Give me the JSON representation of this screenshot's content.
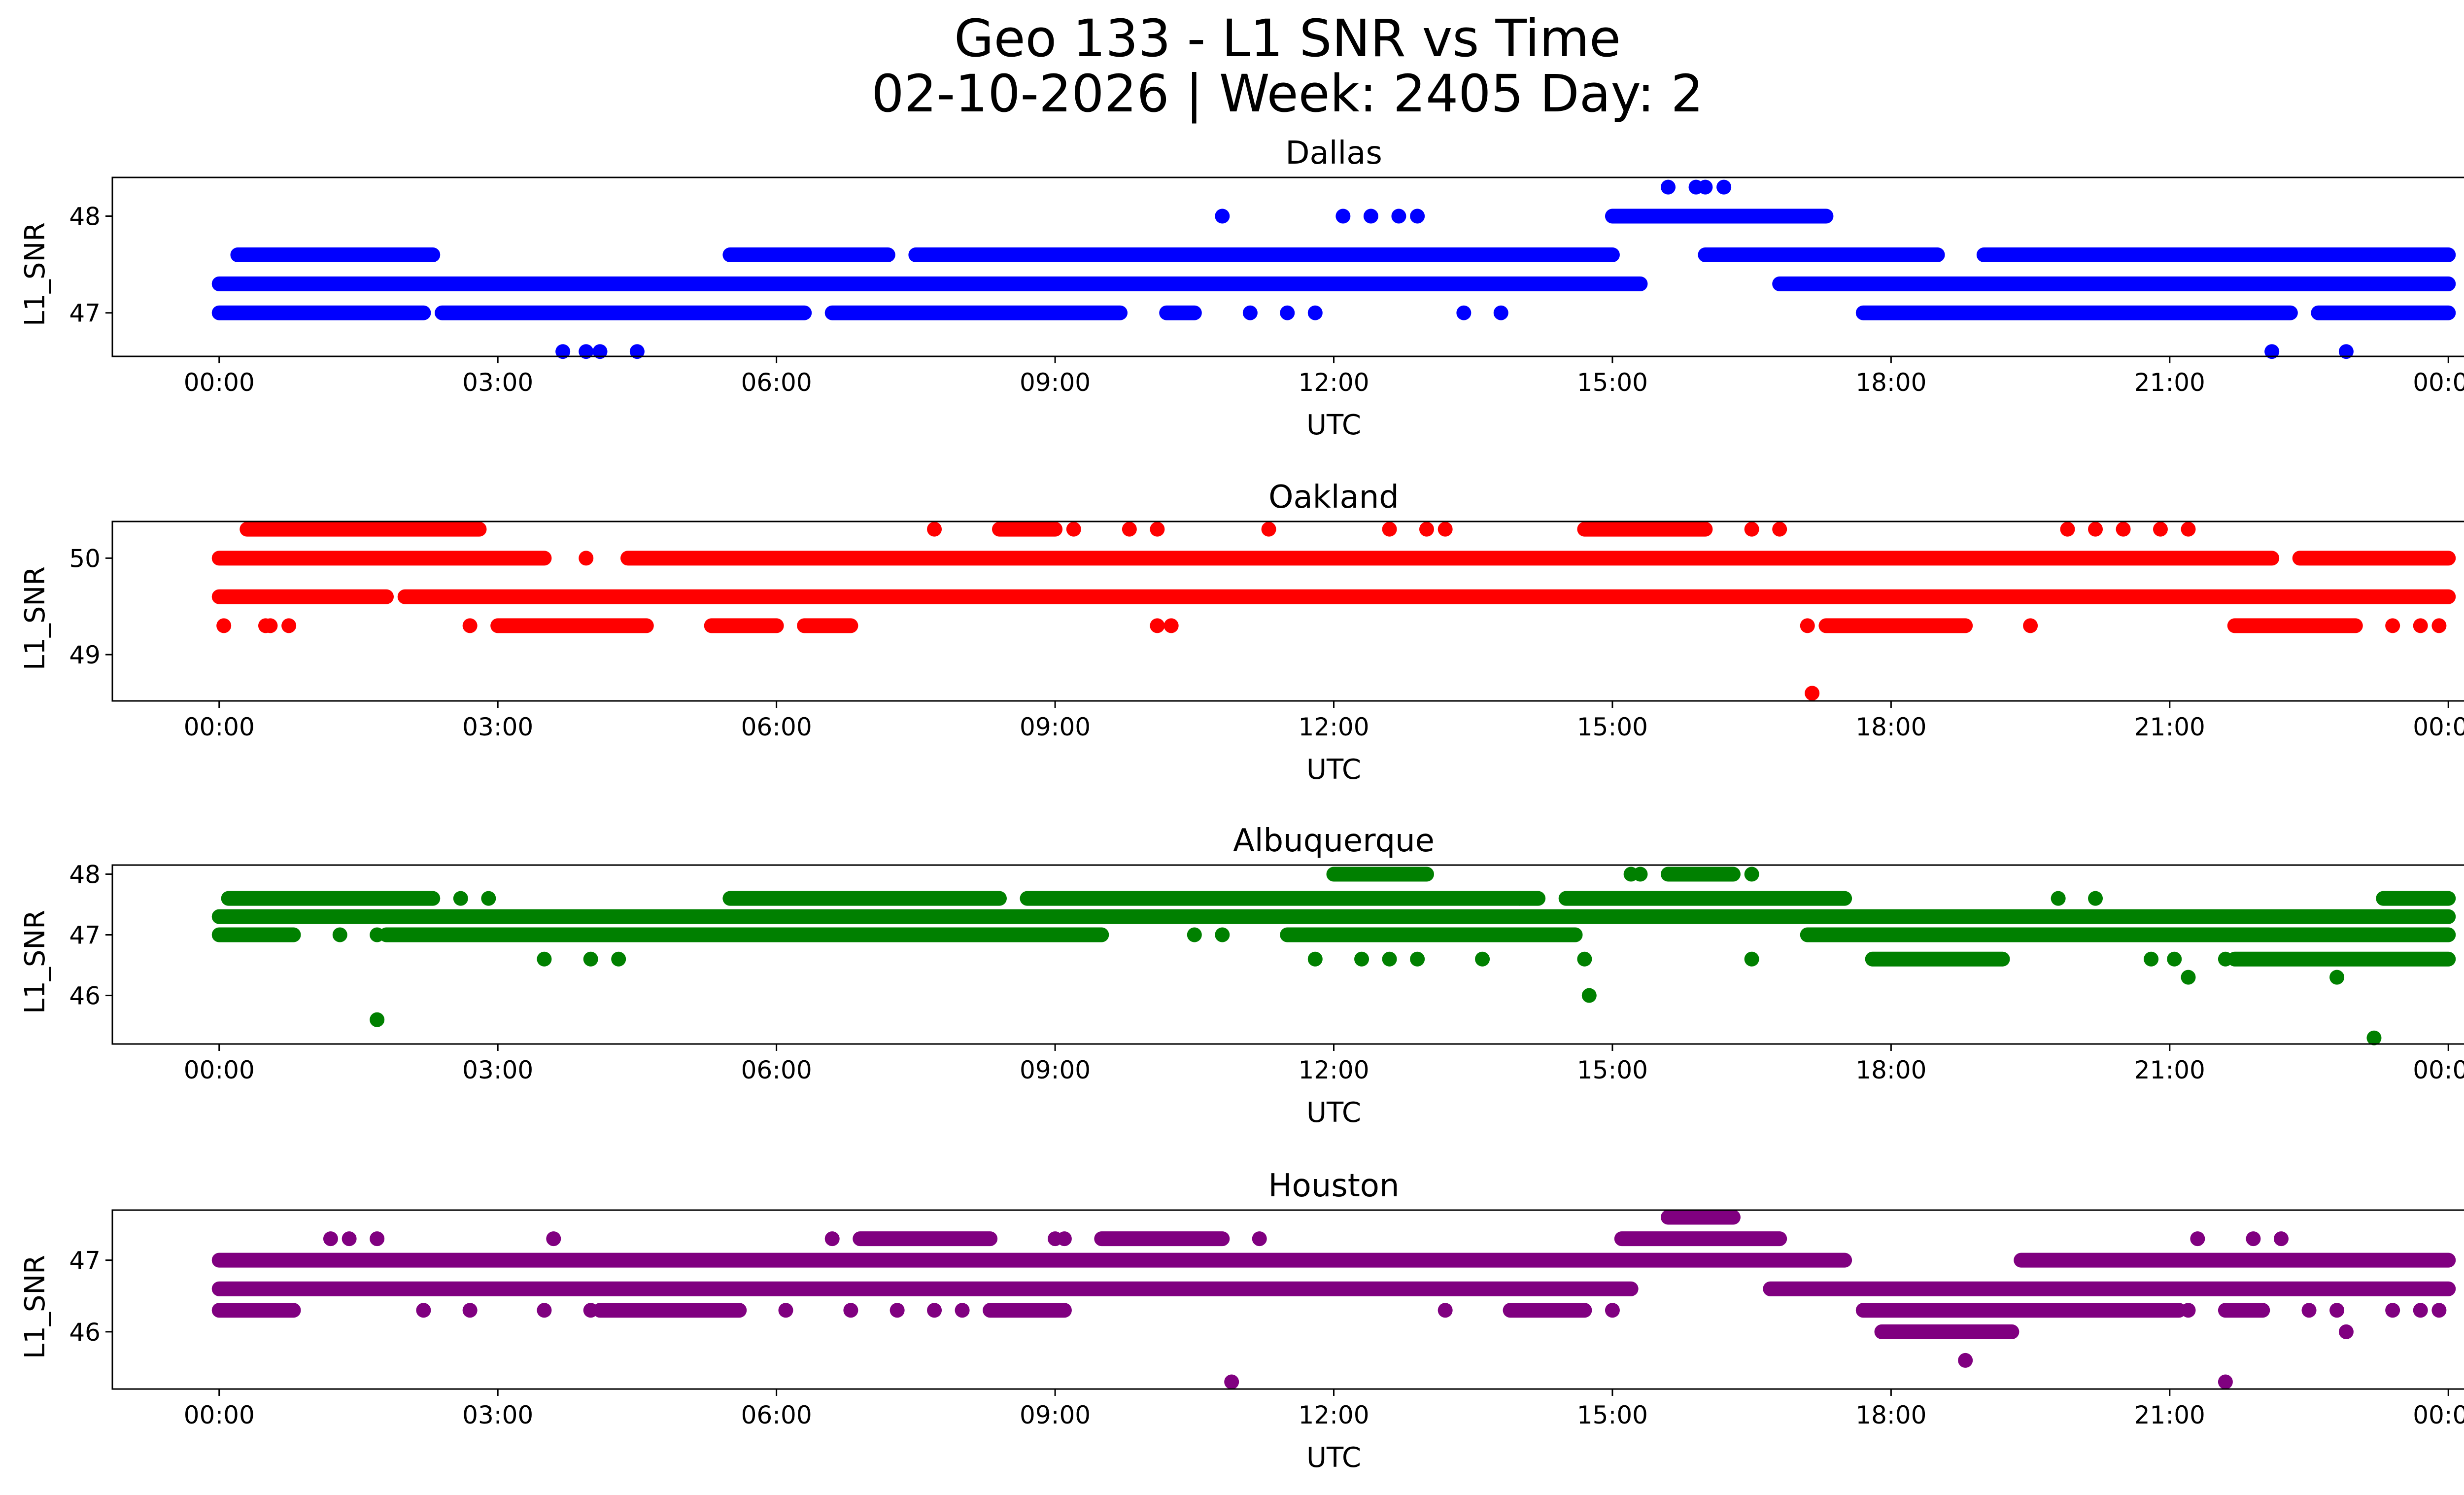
{
  "title": {
    "line1": "Geo 133 - L1 SNR vs Time",
    "line2": "02-10-2026 | Week: 2405 Day: 2"
  },
  "chart_data": [
    {
      "type": "scatter",
      "title": "Dallas",
      "color": "#0000ff",
      "xlabel": "UTC",
      "ylabel": "L1_SNR",
      "xlim_hours": [
        -1.15,
        25.15
      ],
      "ylim": [
        46.55,
        48.4
      ],
      "yticks": [
        47,
        48
      ],
      "xtick_labels": [
        "00:00",
        "03:00",
        "06:00",
        "09:00",
        "12:00",
        "15:00",
        "18:00",
        "21:00",
        "00:00"
      ],
      "bands": [
        {
          "y": 47.3,
          "segments": [
            [
              0.0,
              15.3
            ],
            [
              16.8,
              24.0
            ]
          ]
        },
        {
          "y": 47.0,
          "segments": [
            [
              0.0,
              2.2
            ],
            [
              2.4,
              6.3
            ],
            [
              6.6,
              9.7
            ],
            [
              10.2,
              10.5
            ],
            [
              17.7,
              22.3
            ],
            [
              22.6,
              24.0
            ]
          ]
        },
        {
          "y": 47.6,
          "segments": [
            [
              0.2,
              2.3
            ],
            [
              5.5,
              7.2
            ],
            [
              7.5,
              9.8
            ],
            [
              9.2,
              15.0
            ],
            [
              16.0,
              18.5
            ],
            [
              19.0,
              24.0
            ]
          ]
        },
        {
          "y": 48.0,
          "segments": [
            [
              15.0,
              17.3
            ]
          ]
        }
      ],
      "points": [
        [
          3.7,
          46.6
        ],
        [
          3.95,
          46.6
        ],
        [
          4.1,
          46.6
        ],
        [
          4.5,
          46.6
        ],
        [
          10.8,
          48.0
        ],
        [
          12.1,
          48.0
        ],
        [
          12.4,
          48.0
        ],
        [
          12.7,
          48.0
        ],
        [
          12.9,
          48.0
        ],
        [
          15.6,
          48.3
        ],
        [
          15.9,
          48.3
        ],
        [
          16.0,
          48.3
        ],
        [
          16.2,
          48.3
        ],
        [
          13.4,
          47.0
        ],
        [
          13.8,
          47.0
        ],
        [
          11.1,
          47.0
        ],
        [
          11.5,
          47.0
        ],
        [
          11.8,
          47.0
        ],
        [
          22.1,
          46.6
        ],
        [
          22.9,
          46.6
        ]
      ]
    },
    {
      "type": "scatter",
      "title": "Oakland",
      "color": "#ff0000",
      "xlabel": "UTC",
      "ylabel": "L1_SNR",
      "xlim_hours": [
        -1.15,
        25.15
      ],
      "ylim": [
        48.52,
        50.38
      ],
      "yticks": [
        49,
        50
      ],
      "xtick_labels": [
        "00:00",
        "03:00",
        "06:00",
        "09:00",
        "12:00",
        "15:00",
        "18:00",
        "21:00",
        "00:00"
      ],
      "bands": [
        {
          "y": 49.6,
          "segments": [
            [
              0.0,
              1.8
            ],
            [
              2.0,
              24.0
            ]
          ]
        },
        {
          "y": 50.0,
          "segments": [
            [
              0.0,
              3.5
            ],
            [
              4.4,
              22.1
            ],
            [
              22.4,
              24.0
            ]
          ]
        },
        {
          "y": 49.3,
          "segments": [
            [
              3.0,
              4.6
            ],
            [
              5.3,
              6.0
            ],
            [
              6.3,
              6.8
            ],
            [
              17.3,
              18.8
            ],
            [
              21.7,
              23.0
            ]
          ]
        },
        {
          "y": 50.3,
          "segments": [
            [
              0.3,
              2.8
            ],
            [
              8.4,
              9.0
            ],
            [
              14.7,
              16.0
            ]
          ]
        }
      ],
      "points": [
        [
          0.05,
          49.3
        ],
        [
          0.5,
          49.3
        ],
        [
          0.55,
          49.3
        ],
        [
          0.75,
          49.3
        ],
        [
          2.7,
          49.3
        ],
        [
          10.1,
          49.3
        ],
        [
          10.25,
          49.3
        ],
        [
          17.1,
          49.3
        ],
        [
          19.5,
          49.3
        ],
        [
          23.4,
          49.3
        ],
        [
          23.7,
          49.3
        ],
        [
          23.9,
          49.3
        ],
        [
          3.95,
          50.0
        ],
        [
          7.7,
          50.3
        ],
        [
          9.2,
          50.3
        ],
        [
          9.8,
          50.3
        ],
        [
          10.1,
          50.3
        ],
        [
          11.3,
          50.3
        ],
        [
          12.6,
          50.3
        ],
        [
          13.0,
          50.3
        ],
        [
          13.2,
          50.3
        ],
        [
          16.5,
          50.3
        ],
        [
          16.8,
          50.3
        ],
        [
          19.9,
          50.3
        ],
        [
          20.2,
          50.3
        ],
        [
          20.5,
          50.3
        ],
        [
          20.9,
          50.3
        ],
        [
          21.2,
          50.3
        ],
        [
          17.15,
          48.6
        ]
      ]
    },
    {
      "type": "scatter",
      "title": "Albuquerque",
      "color": "#008000",
      "xlabel": "UTC",
      "ylabel": "L1_SNR",
      "xlim_hours": [
        -1.15,
        25.15
      ],
      "ylim": [
        45.2,
        48.15
      ],
      "yticks": [
        46,
        47,
        48
      ],
      "xtick_labels": [
        "00:00",
        "03:00",
        "06:00",
        "09:00",
        "12:00",
        "15:00",
        "18:00",
        "21:00",
        "00:00"
      ],
      "bands": [
        {
          "y": 47.3,
          "segments": [
            [
              0.0,
              24.0
            ]
          ]
        },
        {
          "y": 47.0,
          "segments": [
            [
              0.0,
              0.8
            ],
            [
              1.8,
              9.5
            ],
            [
              11.5,
              14.6
            ],
            [
              17.1,
              24.0
            ]
          ]
        },
        {
          "y": 47.6,
          "segments": [
            [
              0.1,
              2.3
            ],
            [
              5.5,
              8.4
            ],
            [
              8.7,
              14.2
            ],
            [
              14.5,
              17.5
            ],
            [
              23.3,
              24.0
            ]
          ]
        },
        {
          "y": 46.6,
          "segments": [
            [
              17.8,
              19.2
            ],
            [
              21.7,
              24.0
            ]
          ]
        },
        {
          "y": 48.0,
          "segments": [
            [
              12.0,
              13.0
            ],
            [
              15.6,
              16.3
            ]
          ]
        }
      ],
      "points": [
        [
          1.7,
          45.6
        ],
        [
          3.5,
          46.6
        ],
        [
          4.0,
          46.6
        ],
        [
          4.3,
          46.6
        ],
        [
          11.8,
          46.6
        ],
        [
          12.3,
          46.6
        ],
        [
          12.6,
          46.6
        ],
        [
          12.9,
          46.6
        ],
        [
          13.6,
          46.6
        ],
        [
          14.7,
          46.6
        ],
        [
          14.75,
          46.0
        ],
        [
          16.5,
          46.6
        ],
        [
          20.8,
          46.6
        ],
        [
          21.05,
          46.6
        ],
        [
          21.2,
          46.3
        ],
        [
          21.6,
          46.6
        ],
        [
          22.8,
          46.3
        ],
        [
          23.2,
          45.3
        ],
        [
          2.6,
          47.6
        ],
        [
          2.9,
          47.6
        ],
        [
          14.0,
          47.6
        ],
        [
          16.5,
          48.0
        ],
        [
          15.2,
          48.0
        ],
        [
          15.3,
          48.0
        ],
        [
          19.8,
          47.6
        ],
        [
          20.2,
          47.6
        ],
        [
          1.3,
          47.0
        ],
        [
          1.7,
          47.0
        ],
        [
          10.5,
          47.0
        ],
        [
          10.8,
          47.0
        ]
      ]
    },
    {
      "type": "scatter",
      "title": "Houston",
      "color": "#800080",
      "xlabel": "UTC",
      "ylabel": "L1_SNR",
      "xlim_hours": [
        -1.15,
        25.15
      ],
      "ylim": [
        45.2,
        47.7
      ],
      "yticks": [
        46,
        47
      ],
      "xtick_labels": [
        "00:00",
        "03:00",
        "06:00",
        "09:00",
        "12:00",
        "15:00",
        "18:00",
        "21:00",
        "00:00"
      ],
      "bands": [
        {
          "y": 47.0,
          "segments": [
            [
              0.0,
              17.5
            ],
            [
              19.4,
              24.0
            ]
          ]
        },
        {
          "y": 46.6,
          "segments": [
            [
              0.0,
              15.2
            ],
            [
              16.7,
              24.0
            ]
          ]
        },
        {
          "y": 46.3,
          "segments": [
            [
              0.0,
              0.8
            ],
            [
              4.1,
              5.6
            ],
            [
              8.3,
              9.1
            ],
            [
              13.9,
              14.7
            ],
            [
              17.7,
              21.1
            ],
            [
              21.6,
              22.0
            ]
          ]
        },
        {
          "y": 47.3,
          "segments": [
            [
              6.9,
              8.3
            ],
            [
              9.5,
              10.8
            ],
            [
              15.1,
              16.8
            ]
          ]
        },
        {
          "y": 47.6,
          "segments": [
            [
              15.6,
              16.3
            ]
          ]
        },
        {
          "y": 46.0,
          "segments": [
            [
              17.9,
              19.3
            ]
          ]
        }
      ],
      "points": [
        [
          1.2,
          47.3
        ],
        [
          1.4,
          47.3
        ],
        [
          1.7,
          47.3
        ],
        [
          3.6,
          47.3
        ],
        [
          6.6,
          47.3
        ],
        [
          9.0,
          47.3
        ],
        [
          9.1,
          47.3
        ],
        [
          11.2,
          47.3
        ],
        [
          21.3,
          47.3
        ],
        [
          21.9,
          47.3
        ],
        [
          22.2,
          47.3
        ],
        [
          2.2,
          46.3
        ],
        [
          2.7,
          46.3
        ],
        [
          3.5,
          46.3
        ],
        [
          4.0,
          46.3
        ],
        [
          6.1,
          46.3
        ],
        [
          6.8,
          46.3
        ],
        [
          7.3,
          46.3
        ],
        [
          7.7,
          46.3
        ],
        [
          8.0,
          46.3
        ],
        [
          13.2,
          46.3
        ],
        [
          15.0,
          46.3
        ],
        [
          21.2,
          46.3
        ],
        [
          22.5,
          46.3
        ],
        [
          22.8,
          46.3
        ],
        [
          23.4,
          46.3
        ],
        [
          23.7,
          46.3
        ],
        [
          23.9,
          46.3
        ],
        [
          18.8,
          45.6
        ],
        [
          22.9,
          46.0
        ],
        [
          10.9,
          45.3
        ],
        [
          21.6,
          45.3
        ]
      ]
    }
  ]
}
